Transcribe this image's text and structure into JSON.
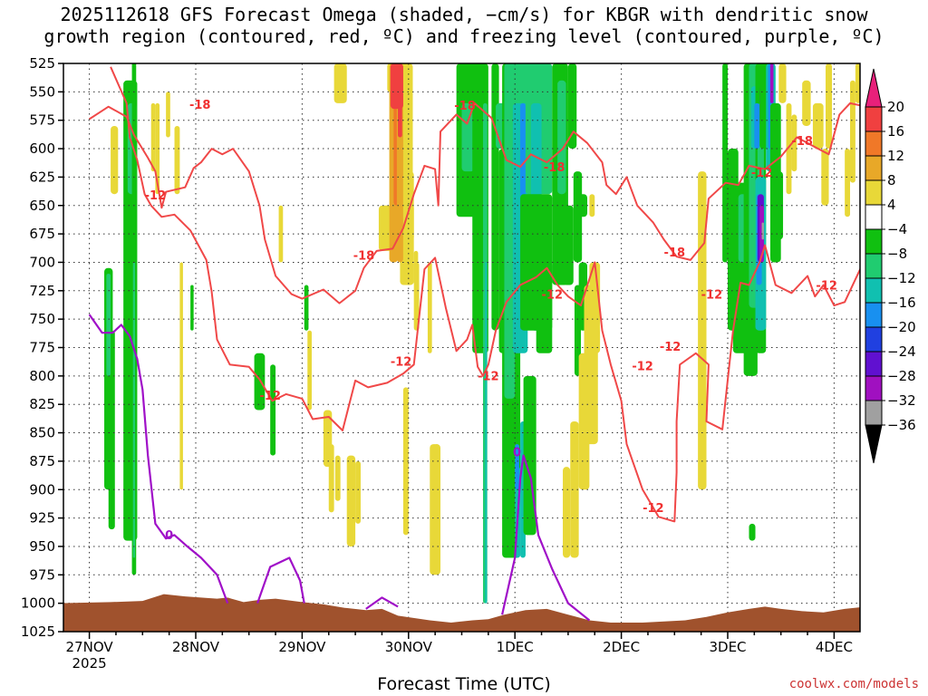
{
  "title_line1": "2025112618 GFS Forecast Omega (shaded, −cm/s) for KBGR with dendritic snow",
  "title_line2": "growth region (contoured, red, ºC) and freezing level (contoured, purple, ºC)",
  "credit": "coolwx.com/models",
  "chart_data": {
    "type": "time-height cross section",
    "title": "2025112618 GFS Forecast Omega (shaded, −cm/s) for KBGR with dendritic snow growth region (contoured, red, ºC) and freezing level (contoured, purple, ºC)",
    "xlabel": "Forecast Time (UTC)",
    "ylabel": "",
    "x_ticks": [
      "27NOV",
      "28NOV",
      "29NOV",
      "30NOV",
      "1DEC",
      "2DEC",
      "3DEC",
      "4DEC"
    ],
    "x_year_label": "2025",
    "x_range_days": [
      0,
      7.5
    ],
    "y_ticks": [
      "525",
      "550",
      "575",
      "600",
      "625",
      "650",
      "675",
      "700",
      "725",
      "750",
      "775",
      "800",
      "825",
      "850",
      "875",
      "900",
      "925",
      "950",
      "975",
      "1000",
      "1025"
    ],
    "y_range_hpa": [
      525,
      1025
    ],
    "colorbar": {
      "labels": [
        "20",
        "16",
        "12",
        "8",
        "4",
        "−4",
        "−8",
        "−12",
        "−16",
        "−20",
        "−24",
        "−28",
        "−32",
        "−36"
      ],
      "colors": [
        "#e8207a",
        "#f04040",
        "#f07828",
        "#e8a828",
        "#e8d838",
        "#ffffff",
        "#10c010",
        "#20cc70",
        "#10c0b0",
        "#1890f0",
        "#2040e0",
        "#6010d0",
        "#a010c0",
        "#a0a0a0",
        "#000000"
      ]
    },
    "contour_labels": [
      {
        "text": "-18",
        "x": 1.04,
        "p": 562
      },
      {
        "text": "-12",
        "x": 0.62,
        "p": 642
      },
      {
        "text": "-18",
        "x": 3.53,
        "p": 563
      },
      {
        "text": "-18",
        "x": 4.37,
        "p": 617
      },
      {
        "text": "-18",
        "x": 2.58,
        "p": 695
      },
      {
        "text": "-18",
        "x": 5.5,
        "p": 692
      },
      {
        "text": "-18",
        "x": 6.7,
        "p": 594
      },
      {
        "text": "-12",
        "x": 6.32,
        "p": 622
      },
      {
        "text": "-12",
        "x": 6.93,
        "p": 721
      },
      {
        "text": "-12",
        "x": 4.35,
        "p": 729
      },
      {
        "text": "-12",
        "x": 5.85,
        "p": 729
      },
      {
        "text": "-12",
        "x": 5.2,
        "p": 792
      },
      {
        "text": "-12",
        "x": 5.46,
        "p": 775
      },
      {
        "text": "-12",
        "x": 2.93,
        "p": 788
      },
      {
        "text": "-12",
        "x": 1.7,
        "p": 818
      },
      {
        "text": "-12",
        "x": 3.75,
        "p": 801
      },
      {
        "text": "-12",
        "x": 5.3,
        "p": 917
      },
      {
        "text": "0",
        "x": 0.75,
        "p": 941
      },
      {
        "text": "0",
        "x": 4.02,
        "p": 868
      }
    ],
    "red_contours_dendritic_C": [
      [
        [
          0,
          574
        ],
        [
          0.18,
          563
        ],
        [
          0.35,
          572
        ],
        [
          0.42,
          588
        ],
        [
          0.55,
          608
        ],
        [
          0.62,
          620
        ],
        [
          0.68,
          652
        ],
        [
          0.72,
          638
        ],
        [
          0.9,
          634
        ],
        [
          0.98,
          617
        ],
        [
          1.05,
          612
        ],
        [
          1.15,
          600
        ],
        [
          1.25,
          605
        ],
        [
          1.35,
          600
        ],
        [
          1.5,
          620
        ],
        [
          1.6,
          650
        ],
        [
          1.65,
          680
        ],
        [
          1.75,
          712
        ],
        [
          1.9,
          728
        ],
        [
          2.0,
          732
        ],
        [
          2.2,
          724
        ],
        [
          2.35,
          736
        ],
        [
          2.5,
          725
        ],
        [
          2.58,
          705
        ],
        [
          2.7,
          690
        ],
        [
          2.85,
          688
        ],
        [
          2.95,
          670
        ],
        [
          3.05,
          640
        ],
        [
          3.15,
          615
        ],
        [
          3.25,
          618
        ],
        [
          3.28,
          650
        ],
        [
          3.3,
          585
        ],
        [
          3.45,
          570
        ],
        [
          3.55,
          578
        ],
        [
          3.62,
          560
        ],
        [
          3.78,
          573
        ],
        [
          3.92,
          610
        ],
        [
          4.05,
          616
        ],
        [
          4.15,
          605
        ],
        [
          4.3,
          612
        ],
        [
          4.45,
          600
        ],
        [
          4.55,
          585
        ],
        [
          4.68,
          595
        ],
        [
          4.82,
          612
        ],
        [
          4.86,
          632
        ],
        [
          4.95,
          640
        ],
        [
          5.05,
          625
        ],
        [
          5.15,
          650
        ],
        [
          5.3,
          665
        ],
        [
          5.4,
          680
        ],
        [
          5.52,
          695
        ],
        [
          5.65,
          698
        ],
        [
          5.78,
          683
        ],
        [
          5.82,
          644
        ],
        [
          5.98,
          630
        ],
        [
          6.1,
          632
        ],
        [
          6.2,
          615
        ],
        [
          6.35,
          618
        ],
        [
          6.5,
          607
        ],
        [
          6.65,
          590
        ],
        [
          6.85,
          600
        ],
        [
          6.95,
          605
        ],
        [
          7.05,
          570
        ],
        [
          7.15,
          560
        ],
        [
          7.3,
          563
        ]
      ],
      [
        [
          0.2,
          528
        ],
        [
          0.35,
          560
        ],
        [
          0.38,
          590
        ],
        [
          0.45,
          610
        ],
        [
          0.52,
          640
        ],
        [
          0.58,
          650
        ],
        [
          0.68,
          660
        ],
        [
          0.8,
          658
        ],
        [
          0.95,
          672
        ],
        [
          1.1,
          698
        ],
        [
          1.15,
          726
        ],
        [
          1.2,
          768
        ],
        [
          1.32,
          790
        ],
        [
          1.5,
          792
        ],
        [
          1.6,
          803
        ],
        [
          1.72,
          822
        ],
        [
          1.85,
          816
        ],
        [
          2.0,
          820
        ],
        [
          2.1,
          838
        ],
        [
          2.25,
          836
        ],
        [
          2.38,
          848
        ],
        [
          2.5,
          804
        ],
        [
          2.62,
          810
        ],
        [
          2.8,
          806
        ],
        [
          2.95,
          798
        ],
        [
          3.05,
          790
        ],
        [
          3.15,
          706
        ],
        [
          3.25,
          696
        ],
        [
          3.35,
          740
        ],
        [
          3.45,
          778
        ],
        [
          3.55,
          768
        ],
        [
          3.6,
          755
        ],
        [
          3.65,
          792
        ],
        [
          3.7,
          800
        ],
        [
          3.75,
          790
        ],
        [
          3.82,
          760
        ],
        [
          3.92,
          735
        ],
        [
          4.05,
          720
        ],
        [
          4.2,
          713
        ],
        [
          4.3,
          705
        ],
        [
          4.4,
          720
        ],
        [
          4.5,
          730
        ],
        [
          4.62,
          738
        ],
        [
          4.75,
          700
        ],
        [
          4.82,
          760
        ],
        [
          4.9,
          790
        ],
        [
          5.0,
          822
        ],
        [
          5.05,
          860
        ],
        [
          5.2,
          900
        ],
        [
          5.35,
          924
        ],
        [
          5.5,
          928
        ],
        [
          5.52,
          885
        ],
        [
          5.52,
          840
        ],
        [
          5.55,
          790
        ],
        [
          5.7,
          780
        ],
        [
          5.82,
          790
        ],
        [
          5.8,
          840
        ],
        [
          5.95,
          847
        ],
        [
          6.05,
          760
        ],
        [
          6.12,
          718
        ],
        [
          6.2,
          720
        ],
        [
          6.3,
          700
        ],
        [
          6.35,
          685
        ],
        [
          6.45,
          720
        ],
        [
          6.6,
          727
        ],
        [
          6.75,
          712
        ],
        [
          6.82,
          730
        ],
        [
          6.9,
          720
        ],
        [
          7.0,
          738
        ],
        [
          7.1,
          735
        ],
        [
          7.25,
          705
        ],
        [
          7.32,
          650
        ],
        [
          7.38,
          645
        ]
      ]
    ],
    "purple_contours_freezing_C": [
      [
        [
          0,
          746
        ],
        [
          0.12,
          762
        ],
        [
          0.22,
          762
        ],
        [
          0.3,
          755
        ],
        [
          0.38,
          765
        ],
        [
          0.45,
          785
        ],
        [
          0.5,
          812
        ],
        [
          0.55,
          870
        ],
        [
          0.62,
          930
        ],
        [
          0.72,
          943
        ],
        [
          0.8,
          940
        ],
        [
          0.92,
          950
        ],
        [
          1.05,
          960
        ],
        [
          1.2,
          975
        ],
        [
          1.3,
          1000
        ]
      ],
      [
        [
          1.58,
          1000
        ],
        [
          1.7,
          968
        ],
        [
          1.88,
          960
        ],
        [
          1.98,
          980
        ],
        [
          2.02,
          1000
        ]
      ],
      [
        [
          2.6,
          1005
        ],
        [
          2.75,
          995
        ],
        [
          2.9,
          1003
        ]
      ],
      [
        [
          3.88,
          1010
        ],
        [
          4.0,
          960
        ],
        [
          4.05,
          890
        ],
        [
          4.08,
          870
        ],
        [
          4.15,
          890
        ],
        [
          4.22,
          940
        ],
        [
          4.35,
          970
        ],
        [
          4.5,
          1000
        ],
        [
          4.7,
          1015
        ]
      ]
    ]
  }
}
